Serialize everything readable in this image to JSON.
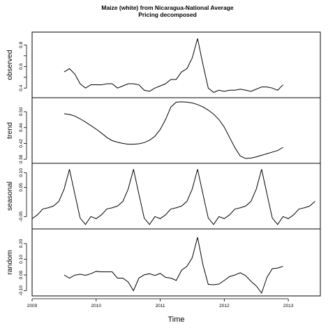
{
  "title": [
    "Maize (white) from Nicaragua-National Average",
    "Pricing decomposed"
  ],
  "xlabel": "Time",
  "chart_data": {
    "type": "line",
    "title": "Maize (white) from Nicaragua-National Average Pricing decomposed",
    "xlabel": "Time",
    "xlim": [
      2009,
      2013.5
    ],
    "x_ticks": [
      2009,
      2010,
      2011,
      2012,
      2013
    ],
    "x_tick_labels": [
      "2009",
      "2010",
      "2011",
      "2012",
      "2013"
    ],
    "grid": false,
    "panels": [
      {
        "name": "observed",
        "ylabel": "observed",
        "ylim": [
          0.33,
          0.9
        ],
        "y_ticks": [
          0.4,
          0.5,
          0.6,
          0.7,
          0.8
        ],
        "y_tick_labels": [
          "0.4",
          "",
          "0.6",
          "",
          "0.8"
        ],
        "x": [
          2009.5,
          2009.583,
          2009.667,
          2009.75,
          2009.833,
          2009.917,
          2010.0,
          2010.083,
          2010.167,
          2010.25,
          2010.333,
          2010.417,
          2010.5,
          2010.583,
          2010.667,
          2010.75,
          2010.833,
          2010.917,
          2011.0,
          2011.083,
          2011.167,
          2011.25,
          2011.333,
          2011.417,
          2011.5,
          2011.583,
          2011.667,
          2011.75,
          2011.833,
          2011.917,
          2012.0,
          2012.083,
          2012.167,
          2012.25,
          2012.333,
          2012.417,
          2012.5,
          2012.583,
          2012.667,
          2012.75,
          2012.833,
          2012.917
        ],
        "values": [
          0.55,
          0.58,
          0.53,
          0.44,
          0.4,
          0.43,
          0.43,
          0.43,
          0.44,
          0.44,
          0.4,
          0.42,
          0.44,
          0.44,
          0.43,
          0.38,
          0.37,
          0.4,
          0.42,
          0.44,
          0.48,
          0.48,
          0.55,
          0.58,
          0.68,
          0.86,
          0.62,
          0.4,
          0.36,
          0.38,
          0.37,
          0.38,
          0.38,
          0.39,
          0.38,
          0.37,
          0.39,
          0.41,
          0.41,
          0.4,
          0.38,
          0.43
        ]
      },
      {
        "name": "trend",
        "ylabel": "trend",
        "ylim": [
          0.375,
          0.53
        ],
        "y_ticks": [
          0.38,
          0.42,
          0.46,
          0.5
        ],
        "y_tick_labels": [
          "0.38",
          "0.42",
          "0.46",
          "0.50"
        ],
        "x": [
          2009.5,
          2009.583,
          2009.667,
          2009.75,
          2009.833,
          2009.917,
          2010.0,
          2010.083,
          2010.167,
          2010.25,
          2010.333,
          2010.417,
          2010.5,
          2010.583,
          2010.667,
          2010.75,
          2010.833,
          2010.917,
          2011.0,
          2011.083,
          2011.167,
          2011.25,
          2011.333,
          2011.417,
          2011.5,
          2011.583,
          2011.667,
          2011.75,
          2011.833,
          2011.917,
          2012.0,
          2012.083,
          2012.167,
          2012.25,
          2012.333,
          2012.417,
          2012.5,
          2012.583,
          2012.667,
          2012.75,
          2012.833,
          2012.917
        ],
        "values": [
          0.495,
          0.493,
          0.489,
          0.482,
          0.474,
          0.465,
          0.456,
          0.446,
          0.435,
          0.427,
          0.423,
          0.42,
          0.418,
          0.418,
          0.419,
          0.422,
          0.428,
          0.438,
          0.455,
          0.48,
          0.512,
          0.524,
          0.525,
          0.524,
          0.522,
          0.518,
          0.512,
          0.504,
          0.494,
          0.48,
          0.461,
          0.435,
          0.409,
          0.388,
          0.382,
          0.383,
          0.386,
          0.39,
          0.394,
          0.398,
          0.402,
          0.41
        ]
      },
      {
        "name": "seasonal",
        "ylabel": "seasonal",
        "ylim": [
          -0.085,
          0.125
        ],
        "y_ticks": [
          -0.05,
          0.05,
          0.1
        ],
        "y_tick_labels": [
          "-0.05",
          "0.05",
          "0.10"
        ],
        "x": [
          2009.0,
          2009.083,
          2009.167,
          2009.25,
          2009.333,
          2009.417,
          2009.5,
          2009.583,
          2009.667,
          2009.75,
          2009.833,
          2009.917,
          2010.0,
          2010.083,
          2010.167,
          2010.25,
          2010.333,
          2010.417,
          2010.5,
          2010.583,
          2010.667,
          2010.75,
          2010.833,
          2010.917,
          2011.0,
          2011.083,
          2011.167,
          2011.25,
          2011.333,
          2011.417,
          2011.5,
          2011.583,
          2011.667,
          2011.75,
          2011.833,
          2011.917,
          2012.0,
          2012.083,
          2012.167,
          2012.25,
          2012.333,
          2012.417,
          2012.5,
          2012.583,
          2012.667,
          2012.75,
          2012.833,
          2012.917,
          2013.0,
          2013.083,
          2013.167,
          2013.25,
          2013.333,
          2013.417
        ],
        "values": [
          -0.057,
          -0.044,
          -0.024,
          -0.02,
          -0.014,
          0.002,
          0.044,
          0.112,
          0.027,
          -0.055,
          -0.077,
          -0.05,
          -0.057,
          -0.044,
          -0.024,
          -0.02,
          -0.014,
          0.002,
          0.044,
          0.112,
          0.027,
          -0.055,
          -0.077,
          -0.05,
          -0.057,
          -0.044,
          -0.024,
          -0.02,
          -0.014,
          0.002,
          0.044,
          0.112,
          0.027,
          -0.055,
          -0.077,
          -0.05,
          -0.057,
          -0.044,
          -0.024,
          -0.02,
          -0.014,
          0.002,
          0.044,
          0.112,
          0.027,
          -0.055,
          -0.077,
          -0.05,
          -0.057,
          -0.044,
          -0.024,
          -0.02,
          -0.014,
          0.002
        ]
      },
      {
        "name": "random",
        "ylabel": "random",
        "ylim": [
          -0.12,
          0.28
        ],
        "y_ticks": [
          -0.1,
          0.0,
          0.1,
          0.2
        ],
        "y_tick_labels": [
          "-0.10",
          "0.00",
          "0.10",
          "0.20"
        ],
        "x": [
          2009.5,
          2009.583,
          2009.667,
          2009.75,
          2009.833,
          2009.917,
          2010.0,
          2010.083,
          2010.167,
          2010.25,
          2010.333,
          2010.417,
          2010.5,
          2010.583,
          2010.667,
          2010.75,
          2010.833,
          2010.917,
          2011.0,
          2011.083,
          2011.167,
          2011.25,
          2011.333,
          2011.417,
          2011.5,
          2011.583,
          2011.667,
          2011.75,
          2011.833,
          2011.917,
          2012.0,
          2012.083,
          2012.167,
          2012.25,
          2012.333,
          2012.417,
          2012.5,
          2012.583,
          2012.667,
          2012.75,
          2012.833,
          2012.917
        ],
        "values": [
          0.0,
          -0.02,
          -0.001,
          0.005,
          -0.002,
          0.008,
          0.023,
          0.02,
          0.02,
          0.02,
          -0.02,
          -0.02,
          -0.045,
          -0.1,
          -0.02,
          0.001,
          0.008,
          -0.003,
          0.01,
          -0.015,
          -0.02,
          -0.035,
          0.03,
          0.055,
          0.11,
          0.24,
          0.065,
          -0.06,
          -0.062,
          -0.058,
          -0.035,
          -0.01,
          0.0,
          0.014,
          -0.004,
          -0.04,
          -0.07,
          -0.115,
          -0.015,
          0.04,
          0.044,
          0.055
        ]
      }
    ]
  }
}
